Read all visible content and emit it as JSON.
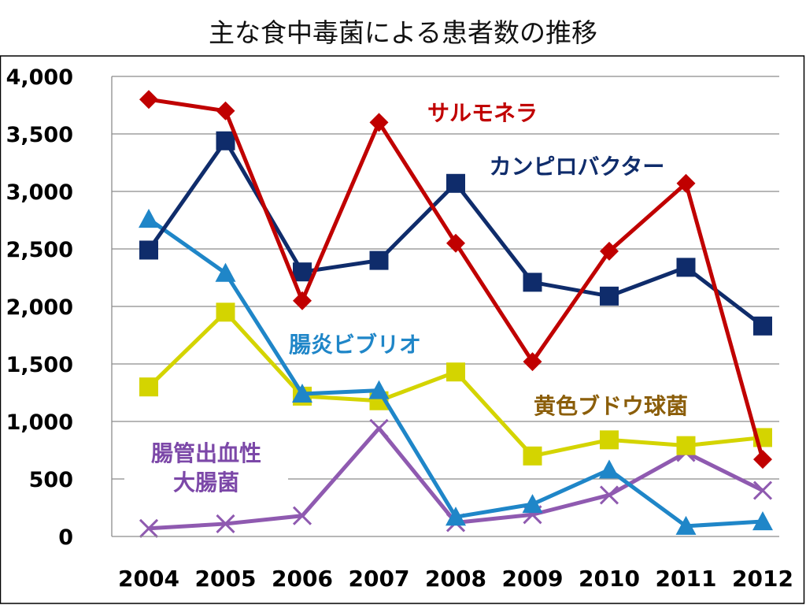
{
  "chart_data": {
    "type": "line",
    "title": "主な食中毒菌による患者数の推移",
    "xlabel": "",
    "ylabel": "",
    "x": [
      "2004",
      "2005",
      "2006",
      "2007",
      "2008",
      "2009",
      "2010",
      "2011",
      "2012"
    ],
    "ylim": [
      0,
      4000
    ],
    "yticks": [
      0,
      500,
      1000,
      1500,
      2000,
      2500,
      3000,
      3500,
      4000
    ],
    "ytick_labels": [
      "0",
      "500",
      "1,000",
      "1,500",
      "2,000",
      "2,500",
      "3,000",
      "3,500",
      "4,000"
    ],
    "grid": true,
    "legend": "none",
    "series": [
      {
        "name": "サルモネラ",
        "label_lines": [
          "サルモネラ"
        ],
        "marker": "diamond",
        "color": "#c00000",
        "values": [
          3800,
          3700,
          2050,
          3600,
          2550,
          1520,
          2480,
          3070,
          670
        ]
      },
      {
        "name": "カンピロバクター",
        "label_lines": [
          "カンピロバクター"
        ],
        "marker": "square",
        "color": "#0f2c6b",
        "values": [
          2490,
          3440,
          2300,
          2400,
          3070,
          2210,
          2090,
          2340,
          1830
        ]
      },
      {
        "name": "腸炎ビブリオ",
        "label_lines": [
          "腸炎ビブリオ"
        ],
        "marker": "triangle",
        "color": "#1f86c8",
        "values": [
          2760,
          2290,
          1240,
          1270,
          170,
          280,
          580,
          90,
          130
        ]
      },
      {
        "name": "黄色ブドウ球菌",
        "label_lines": [
          "黄色ブドウ球菌"
        ],
        "marker": "square",
        "color": "#d4d400",
        "values": [
          1300,
          1950,
          1220,
          1180,
          1430,
          700,
          840,
          790,
          860
        ]
      },
      {
        "name": "腸管出血性大腸菌",
        "label_lines": [
          "腸管出血性",
          "大腸菌"
        ],
        "marker": "x",
        "color": "#8f5ab0",
        "values": [
          70,
          110,
          180,
          940,
          120,
          190,
          360,
          730,
          400
        ]
      }
    ],
    "label_colors": {
      "サルモネラ": "#c00000",
      "カンピロバクター": "#0f2c6b",
      "腸炎ビブリオ": "#1f86c8",
      "黄色ブドウ球菌": "#8b5e0a",
      "腸管出血性大腸菌": "#7c48a8"
    }
  }
}
